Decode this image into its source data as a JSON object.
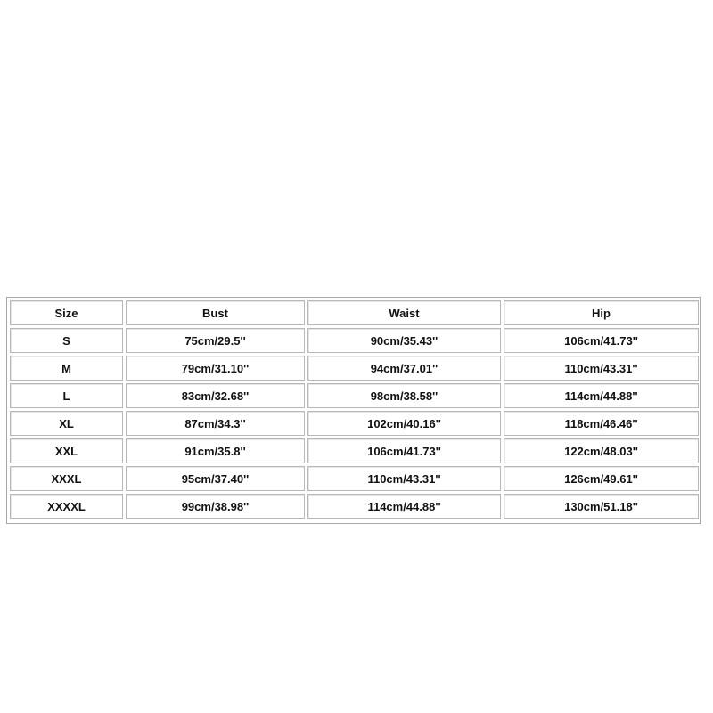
{
  "table": {
    "headers": [
      "Size",
      "Bust",
      "Waist",
      "Hip"
    ],
    "rows": [
      [
        "S",
        "75cm/29.5''",
        "90cm/35.43''",
        "106cm/41.73''"
      ],
      [
        "M",
        "79cm/31.10''",
        "94cm/37.01''",
        "110cm/43.31''"
      ],
      [
        "L",
        "83cm/32.68''",
        "98cm/38.58''",
        "114cm/44.88''"
      ],
      [
        "XL",
        "87cm/34.3''",
        "102cm/40.16''",
        "118cm/46.46''"
      ],
      [
        "XXL",
        "91cm/35.8''",
        "106cm/41.73''",
        "122cm/48.03''"
      ],
      [
        "XXXL",
        "95cm/37.40''",
        "110cm/43.31''",
        "126cm/49.61''"
      ],
      [
        "XXXXL",
        "99cm/38.98''",
        "114cm/44.88''",
        "130cm/51.18''"
      ]
    ]
  }
}
